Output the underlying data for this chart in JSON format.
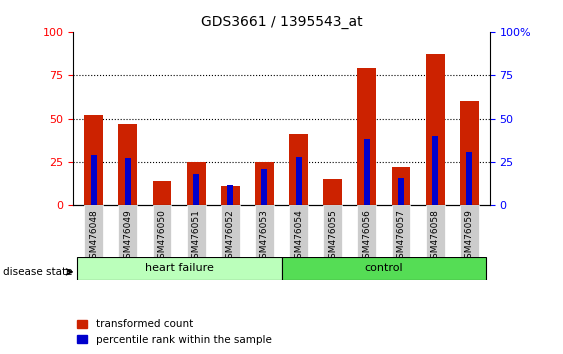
{
  "title": "GDS3661 / 1395543_at",
  "samples": [
    "GSM476048",
    "GSM476049",
    "GSM476050",
    "GSM476051",
    "GSM476052",
    "GSM476053",
    "GSM476054",
    "GSM476055",
    "GSM476056",
    "GSM476057",
    "GSM476058",
    "GSM476059"
  ],
  "red_values": [
    52,
    47,
    14,
    25,
    11,
    25,
    41,
    15,
    79,
    22,
    87,
    60
  ],
  "blue_values": [
    29,
    27,
    0,
    18,
    12,
    21,
    28,
    0,
    38,
    16,
    40,
    31
  ],
  "groups": [
    {
      "label": "heart failure",
      "start": 0,
      "end": 6,
      "light_color": "#BBFFBB",
      "dark_color": "#55DD55"
    },
    {
      "label": "control",
      "start": 6,
      "end": 12,
      "light_color": "#55DD55",
      "dark_color": "#22BB22"
    }
  ],
  "disease_state_label": "disease state",
  "legend_red": "transformed count",
  "legend_blue": "percentile rank within the sample",
  "bar_color_red": "#CC2200",
  "bar_color_blue": "#0000CC",
  "ylim": [
    0,
    100
  ],
  "yticks": [
    0,
    25,
    50,
    75,
    100
  ],
  "right_ytick_labels": [
    "0",
    "25",
    "50",
    "75",
    "100%"
  ]
}
